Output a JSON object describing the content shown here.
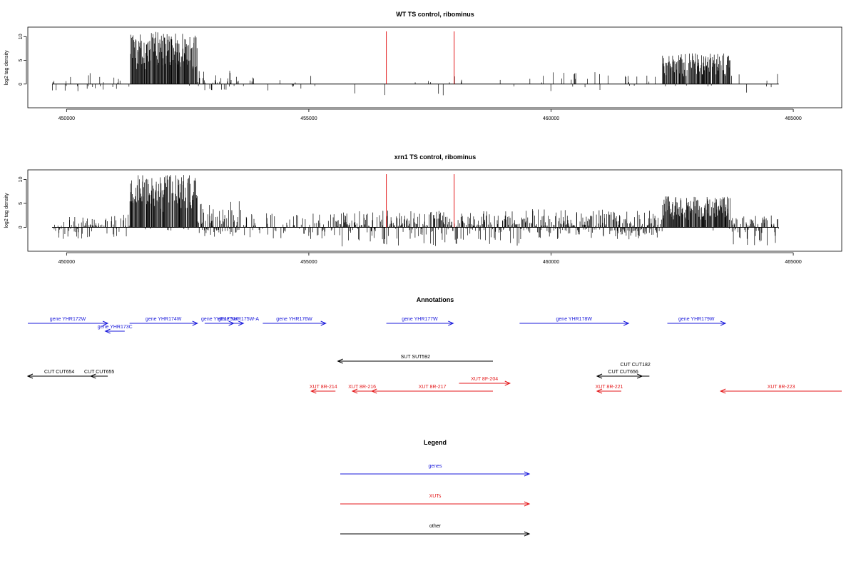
{
  "chart_data": [
    {
      "type": "bar",
      "title": "WT TS control, ribominus",
      "ylabel": "log2 tag density",
      "xlim": [
        449200,
        466000
      ],
      "ylim": [
        -5,
        12
      ],
      "xticks": [
        450000,
        455000,
        460000,
        465000
      ],
      "yticks": [
        0,
        5,
        10
      ],
      "data_extent": [
        449700,
        464700
      ],
      "segments": [
        {
          "from": 449700,
          "to": 451300,
          "density": 0.14,
          "max": 2.5,
          "negMax": 1.5
        },
        {
          "from": 451300,
          "to": 452700,
          "density": 0.96,
          "max": 11,
          "negMax": 0.4,
          "min": 3
        },
        {
          "from": 452700,
          "to": 453600,
          "density": 0.55,
          "max": 3.5,
          "negMax": 1.5
        },
        {
          "from": 453600,
          "to": 455500,
          "density": 0.06,
          "max": 2.5,
          "negMax": 1.5
        },
        {
          "from": 455500,
          "to": 459600,
          "density": 0.07,
          "max": 2.5,
          "negMax": 2.5
        },
        {
          "from": 459600,
          "to": 462300,
          "density": 0.12,
          "max": 2.5,
          "negMax": 1.5
        },
        {
          "from": 462300,
          "to": 463700,
          "density": 0.9,
          "max": 6.5,
          "negMax": 0.5,
          "min": 1.5
        },
        {
          "from": 463700,
          "to": 464700,
          "density": 0.06,
          "max": 2.5,
          "negMax": 2.5
        }
      ],
      "markers": [
        {
          "x": 456600,
          "color": "#e41a1c"
        },
        {
          "x": 458000,
          "color": "#e41a1c"
        }
      ]
    },
    {
      "type": "bar",
      "title": "xrn1 TS control, ribominus",
      "ylabel": "log2 tag density",
      "xlim": [
        449200,
        466000
      ],
      "ylim": [
        -5,
        12
      ],
      "xticks": [
        450000,
        455000,
        460000,
        465000
      ],
      "yticks": [
        0,
        5,
        10
      ],
      "data_extent": [
        449700,
        464700
      ],
      "segments": [
        {
          "from": 449700,
          "to": 451300,
          "density": 0.45,
          "max": 3.0,
          "negMax": 2.5
        },
        {
          "from": 451300,
          "to": 452700,
          "density": 0.96,
          "max": 11,
          "negMax": 1.0,
          "min": 3
        },
        {
          "from": 452700,
          "to": 453600,
          "density": 0.8,
          "max": 5.5,
          "negMax": 2.0
        },
        {
          "from": 453600,
          "to": 455500,
          "density": 0.35,
          "max": 3.0,
          "negMax": 2.5
        },
        {
          "from": 455500,
          "to": 459400,
          "density": 0.75,
          "max": 3.5,
          "negMax": 4.0
        },
        {
          "from": 459400,
          "to": 462300,
          "density": 0.85,
          "max": 3.8,
          "negMax": 2.5
        },
        {
          "from": 462300,
          "to": 463700,
          "density": 0.95,
          "max": 6.5,
          "negMax": 1.0,
          "min": 1.5
        },
        {
          "from": 463700,
          "to": 464700,
          "density": 0.6,
          "max": 2.5,
          "negMax": 4.0
        }
      ],
      "markers": [
        {
          "x": 456600,
          "color": "#e41a1c"
        },
        {
          "x": 458000,
          "color": "#e41a1c"
        }
      ]
    }
  ],
  "annotations": {
    "title": "Annotations",
    "colors": {
      "gene": "#1a1adb",
      "xut": "#e41a1c",
      "other": "#000000"
    },
    "features": [
      {
        "label": "gene YHR172W",
        "type": "gene",
        "from": 449200,
        "to": 450850,
        "row": 0,
        "dir": "+"
      },
      {
        "label": "gene YHR173C",
        "type": "gene",
        "from": 450800,
        "to": 451200,
        "row": 1,
        "dir": "-"
      },
      {
        "label": "gene YHR174W",
        "type": "gene",
        "from": 451300,
        "to": 452700,
        "row": 0,
        "dir": "+"
      },
      {
        "label": "gene YHR175W",
        "type": "gene",
        "from": 452850,
        "to": 453450,
        "row": 0,
        "dir": "+"
      },
      {
        "label": "gene YHR175W-A",
        "type": "gene",
        "from": 453450,
        "to": 453650,
        "row": 0,
        "dir": "+"
      },
      {
        "label": "gene YHR176W",
        "type": "gene",
        "from": 454050,
        "to": 455350,
        "row": 0,
        "dir": "+"
      },
      {
        "label": "gene YHR177W",
        "type": "gene",
        "from": 456600,
        "to": 457980,
        "row": 0,
        "dir": "+"
      },
      {
        "label": "gene YHR178W",
        "type": "gene",
        "from": 459350,
        "to": 461600,
        "row": 0,
        "dir": "+"
      },
      {
        "label": "gene YHR179W",
        "type": "gene",
        "from": 462400,
        "to": 463600,
        "row": 0,
        "dir": "+"
      },
      {
        "label": "SUT SUT592",
        "type": "other",
        "from": 455600,
        "to": 458800,
        "row": 2,
        "dir": "-"
      },
      {
        "label": "CUT CUT654",
        "type": "other",
        "from": 449200,
        "to": 450500,
        "row": 3,
        "dir": "-"
      },
      {
        "label": "CUT CUT655",
        "type": "other",
        "from": 450500,
        "to": 450850,
        "row": 3,
        "dir": "-"
      },
      {
        "label": "CUT CUT182",
        "type": "other",
        "from": 461600,
        "to": 461880,
        "row": 3,
        "dir": "+",
        "labelAbove": 10
      },
      {
        "label": "CUT CUT656",
        "type": "other",
        "from": 460950,
        "to": 462030,
        "row": 3,
        "dir": "-",
        "labelAbove": 0
      },
      {
        "label": "XUT 8F-204",
        "type": "xut",
        "from": 458100,
        "to": 459150,
        "row": 4,
        "dir": "+"
      },
      {
        "label": "XUT 8R-214",
        "type": "xut",
        "from": 455050,
        "to": 455550,
        "row": 5,
        "dir": "-"
      },
      {
        "label": "XUT 8R-216",
        "type": "xut",
        "from": 455900,
        "to": 456300,
        "row": 5,
        "dir": "-"
      },
      {
        "label": "XUT 8R-217",
        "type": "xut",
        "from": 456300,
        "to": 458800,
        "row": 5,
        "dir": "-"
      },
      {
        "label": "XUT 8R-221",
        "type": "xut",
        "from": 460950,
        "to": 461450,
        "row": 5,
        "dir": "-"
      },
      {
        "label": "XUT 8R-223",
        "type": "xut",
        "from": 463500,
        "to": 466000,
        "row": 5,
        "dir": "-"
      }
    ]
  },
  "legend": {
    "title": "Legend",
    "items": [
      {
        "label": "genes",
        "color": "#1a1adb"
      },
      {
        "label": "XUTs",
        "color": "#e41a1c"
      },
      {
        "label": "other",
        "color": "#000000"
      }
    ]
  }
}
